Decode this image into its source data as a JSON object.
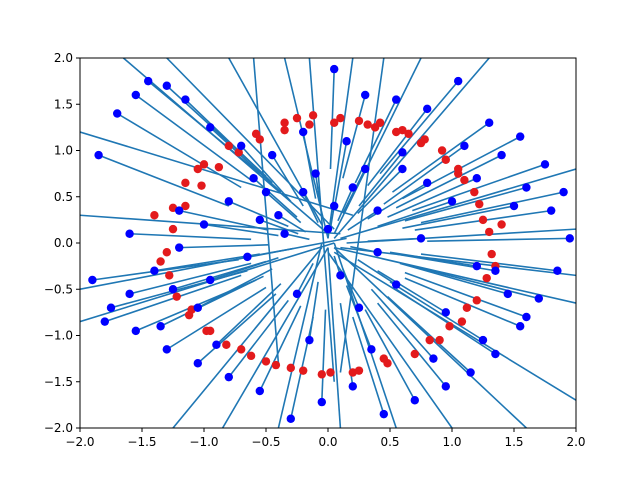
{
  "chart_data": {
    "type": "scatter",
    "title": "",
    "xlabel": "",
    "ylabel": "",
    "xlim": [
      -2.0,
      2.0
    ],
    "ylim": [
      -2.0,
      2.0
    ],
    "x_ticks": [
      "−2.0",
      "−1.5",
      "−1.0",
      "−0.5",
      "0.0",
      "0.5",
      "1.0",
      "1.5",
      "2.0"
    ],
    "y_ticks": [
      "−2.0",
      "−1.5",
      "−1.0",
      "−0.5",
      "0.0",
      "0.5",
      "1.0",
      "1.5",
      "2.0"
    ],
    "grid": false,
    "legend": "none",
    "description_of_layers": "red ring points around radius ~1.2; blue points with line segments radiating toward the origin",
    "series": [
      {
        "kind": "red-ring-points",
        "color": "#e31a1c",
        "x": [
          1.25,
          1.18,
          1.05,
          0.92,
          0.78,
          0.6,
          0.42,
          0.25,
          0.05,
          -0.15,
          -0.35,
          -0.55,
          -0.72,
          -0.88,
          -1.02,
          -1.15,
          -1.25,
          -1.3,
          -1.28,
          -1.22,
          -1.12,
          -0.98,
          -0.82,
          -0.62,
          -0.42,
          -0.2,
          0.02,
          0.25,
          0.48,
          0.7,
          0.9,
          1.08,
          1.2,
          1.28,
          1.32,
          1.3,
          1.22,
          1.1,
          0.95,
          0.75,
          0.55,
          0.32,
          0.1,
          -0.12,
          -0.35,
          -0.58,
          -0.8,
          -1.0,
          -1.15,
          -1.25,
          0.82,
          0.98,
          1.12,
          -0.3,
          -0.05,
          0.2,
          0.45,
          -0.95,
          -1.1,
          -0.7,
          1.4,
          1.35,
          -1.4,
          -1.35,
          0.65,
          -0.5,
          0.38,
          -0.25,
          1.05,
          -1.05
        ],
        "y": [
          0.25,
          0.55,
          0.8,
          1.0,
          1.12,
          1.22,
          1.3,
          1.32,
          1.3,
          1.28,
          1.22,
          1.12,
          0.98,
          0.82,
          0.62,
          0.4,
          0.15,
          -0.1,
          -0.35,
          -0.58,
          -0.78,
          -0.95,
          -1.1,
          -1.22,
          -1.32,
          -1.38,
          -1.4,
          -1.38,
          -1.3,
          -1.2,
          -1.05,
          -0.85,
          -0.62,
          -0.38,
          -0.12,
          0.12,
          0.42,
          0.68,
          0.9,
          1.08,
          1.2,
          1.28,
          1.35,
          1.38,
          1.3,
          1.18,
          1.05,
          0.85,
          0.65,
          0.38,
          -1.05,
          -0.9,
          -0.7,
          -1.35,
          -1.42,
          -1.4,
          -1.25,
          -0.95,
          -0.72,
          -1.15,
          0.2,
          -0.25,
          0.3,
          -0.2,
          1.18,
          -1.28,
          1.25,
          1.35,
          0.75,
          0.8
        ]
      },
      {
        "kind": "blue-points-with-segments",
        "color": "#0000ff",
        "line_color": "#1f77b4",
        "x": [
          -1.85,
          -1.7,
          -1.55,
          -1.45,
          -1.3,
          -1.15,
          -0.95,
          -0.7,
          -0.45,
          -0.2,
          0.05,
          0.3,
          0.55,
          0.8,
          1.05,
          1.3,
          1.55,
          1.75,
          1.9,
          1.95,
          1.85,
          1.7,
          1.55,
          1.35,
          1.15,
          0.95,
          0.7,
          0.45,
          0.2,
          -0.05,
          -0.3,
          -0.55,
          -0.8,
          -1.05,
          -1.3,
          -1.55,
          -1.75,
          -1.9,
          -1.8,
          -1.6,
          -1.4,
          -1.2,
          -1.0,
          -0.8,
          -0.6,
          -0.4,
          -0.2,
          0.0,
          0.2,
          0.4,
          0.6,
          0.8,
          1.0,
          1.2,
          1.4,
          1.6,
          1.8,
          -0.65,
          -0.35,
          0.1,
          0.4,
          0.75,
          1.2,
          1.45,
          -1.05,
          -1.35,
          -0.9,
          -0.15,
          0.35,
          0.85,
          1.25,
          1.6,
          -1.6,
          -1.2,
          -0.5,
          0.15,
          0.6,
          1.1,
          1.5,
          -0.25,
          0.25,
          0.55,
          -0.55,
          0.95,
          -0.95,
          1.35,
          -1.25,
          0.05,
          -0.1,
          0.3
        ],
        "y": [
          0.95,
          1.4,
          1.6,
          1.75,
          1.7,
          1.55,
          1.25,
          1.05,
          0.95,
          1.2,
          1.88,
          1.6,
          1.55,
          1.45,
          1.75,
          1.3,
          1.15,
          0.85,
          0.55,
          0.05,
          -0.3,
          -0.6,
          -0.9,
          -1.2,
          -1.4,
          -1.55,
          -1.7,
          -1.85,
          -1.55,
          -1.72,
          -1.9,
          -1.6,
          -1.45,
          -1.3,
          -1.15,
          -0.95,
          -0.7,
          -0.4,
          -0.85,
          -0.55,
          -0.3,
          -0.05,
          0.2,
          0.45,
          0.7,
          0.3,
          0.55,
          0.15,
          0.6,
          0.35,
          0.8,
          0.65,
          0.45,
          0.7,
          0.95,
          0.6,
          0.35,
          -0.15,
          0.1,
          -0.35,
          -0.1,
          0.05,
          -0.25,
          -0.55,
          -0.7,
          -0.9,
          -1.1,
          -1.05,
          -1.15,
          -1.25,
          -1.05,
          -0.8,
          0.1,
          0.35,
          0.55,
          1.1,
          0.98,
          1.05,
          0.4,
          -0.55,
          -0.7,
          -0.45,
          0.25,
          -0.75,
          -0.4,
          -0.3,
          -0.5,
          0.4,
          0.75,
          0.8
        ],
        "segment_end_x": [
          -0.8,
          -0.7,
          -0.62,
          -0.55,
          -0.5,
          -0.45,
          -0.38,
          -0.3,
          -0.2,
          -0.1,
          0.02,
          0.12,
          0.22,
          0.32,
          0.42,
          0.52,
          0.6,
          0.68,
          0.75,
          0.8,
          0.75,
          0.68,
          0.62,
          0.55,
          0.48,
          0.4,
          0.3,
          0.2,
          0.1,
          -0.02,
          -0.12,
          -0.22,
          -0.32,
          -0.42,
          -0.5,
          -0.58,
          -0.65,
          -0.72,
          -0.7,
          -0.62,
          -0.55,
          -0.48,
          -0.4,
          -0.32,
          -0.25,
          -0.18,
          -0.08,
          0.0,
          0.08,
          0.16,
          0.24,
          0.32,
          0.4,
          0.48,
          0.55,
          0.62,
          0.7,
          -0.28,
          -0.15,
          0.05,
          0.18,
          0.32,
          0.5,
          0.58,
          -0.45,
          -0.52,
          -0.38,
          -0.08,
          0.15,
          0.35,
          0.5,
          0.62,
          -0.62,
          -0.48,
          -0.22,
          0.06,
          0.25,
          0.45,
          0.6,
          -0.12,
          0.12,
          0.24,
          -0.24,
          0.4,
          -0.4,
          0.55,
          -0.5,
          0.02,
          -0.05,
          0.12
        ],
        "segment_end_y": [
          0.4,
          0.6,
          0.68,
          0.75,
          0.72,
          0.65,
          0.55,
          0.45,
          0.4,
          0.48,
          0.8,
          0.7,
          0.65,
          0.62,
          0.75,
          0.55,
          0.48,
          0.35,
          0.22,
          0.02,
          -0.12,
          -0.25,
          -0.38,
          -0.5,
          -0.58,
          -0.65,
          -0.72,
          -0.8,
          -0.65,
          -0.72,
          -0.8,
          -0.68,
          -0.62,
          -0.55,
          -0.48,
          -0.4,
          -0.3,
          -0.18,
          -0.35,
          -0.22,
          -0.12,
          -0.02,
          0.08,
          0.18,
          0.28,
          0.12,
          0.22,
          0.06,
          0.24,
          0.14,
          0.32,
          0.26,
          0.18,
          0.28,
          0.38,
          0.24,
          0.14,
          -0.06,
          0.04,
          -0.14,
          -0.04,
          0.02,
          -0.1,
          -0.22,
          -0.28,
          -0.36,
          -0.44,
          -0.42,
          -0.46,
          -0.5,
          -0.42,
          -0.32,
          0.04,
          0.14,
          0.22,
          0.44,
          0.4,
          0.42,
          0.16,
          -0.22,
          -0.28,
          -0.18,
          0.1,
          -0.3,
          -0.16,
          -0.12,
          -0.2,
          0.16,
          0.3,
          0.32
        ]
      }
    ],
    "long_lines": {
      "color": "#1f77b4",
      "segments": [
        [
          [
            -2.0,
            1.2
          ],
          [
            0.2,
            0.3
          ]
        ],
        [
          [
            -2.0,
            0.3
          ],
          [
            0.1,
            0.1
          ]
        ],
        [
          [
            -2.0,
            -0.5
          ],
          [
            0.15,
            0.05
          ]
        ],
        [
          [
            -2.0,
            -0.85
          ],
          [
            0.05,
            0.0
          ]
        ],
        [
          [
            -1.65,
            2.0
          ],
          [
            0.0,
            0.1
          ]
        ],
        [
          [
            -1.3,
            2.0
          ],
          [
            0.05,
            0.15
          ]
        ],
        [
          [
            -0.8,
            2.0
          ],
          [
            -0.05,
            0.2
          ]
        ],
        [
          [
            -0.35,
            2.0
          ],
          [
            0.0,
            0.05
          ]
        ],
        [
          [
            0.2,
            2.0
          ],
          [
            0.0,
            0.05
          ]
        ],
        [
          [
            0.75,
            2.0
          ],
          [
            0.05,
            0.1
          ]
        ],
        [
          [
            1.3,
            2.0
          ],
          [
            0.05,
            0.05
          ]
        ],
        [
          [
            2.0,
            0.8
          ],
          [
            0.1,
            0.05
          ]
        ],
        [
          [
            2.0,
            0.15
          ],
          [
            0.15,
            0.0
          ]
        ],
        [
          [
            2.0,
            -0.35
          ],
          [
            0.1,
            -0.05
          ]
        ],
        [
          [
            2.0,
            -0.65
          ],
          [
            0.05,
            -0.05
          ]
        ],
        [
          [
            2.0,
            -1.7
          ],
          [
            0.05,
            -0.1
          ]
        ],
        [
          [
            1.6,
            -2.0
          ],
          [
            0.05,
            -0.05
          ]
        ],
        [
          [
            1.0,
            -2.0
          ],
          [
            0.0,
            -0.1
          ]
        ],
        [
          [
            0.55,
            -2.0
          ],
          [
            0.05,
            0.0
          ]
        ],
        [
          [
            0.1,
            -2.0
          ],
          [
            0.0,
            -0.05
          ]
        ],
        [
          [
            -0.4,
            -2.0
          ],
          [
            -0.05,
            0.0
          ]
        ],
        [
          [
            -0.85,
            -2.0
          ],
          [
            0.0,
            -0.05
          ]
        ],
        [
          [
            -1.25,
            -2.0
          ],
          [
            -0.05,
            -0.05
          ]
        ],
        [
          [
            -0.6,
            2.0
          ],
          [
            -0.4,
            -1.3
          ]
        ],
        [
          [
            -0.15,
            2.0
          ],
          [
            0.05,
            -1.5
          ]
        ],
        [
          [
            0.45,
            2.0
          ],
          [
            0.1,
            -1.4
          ]
        ]
      ]
    }
  }
}
